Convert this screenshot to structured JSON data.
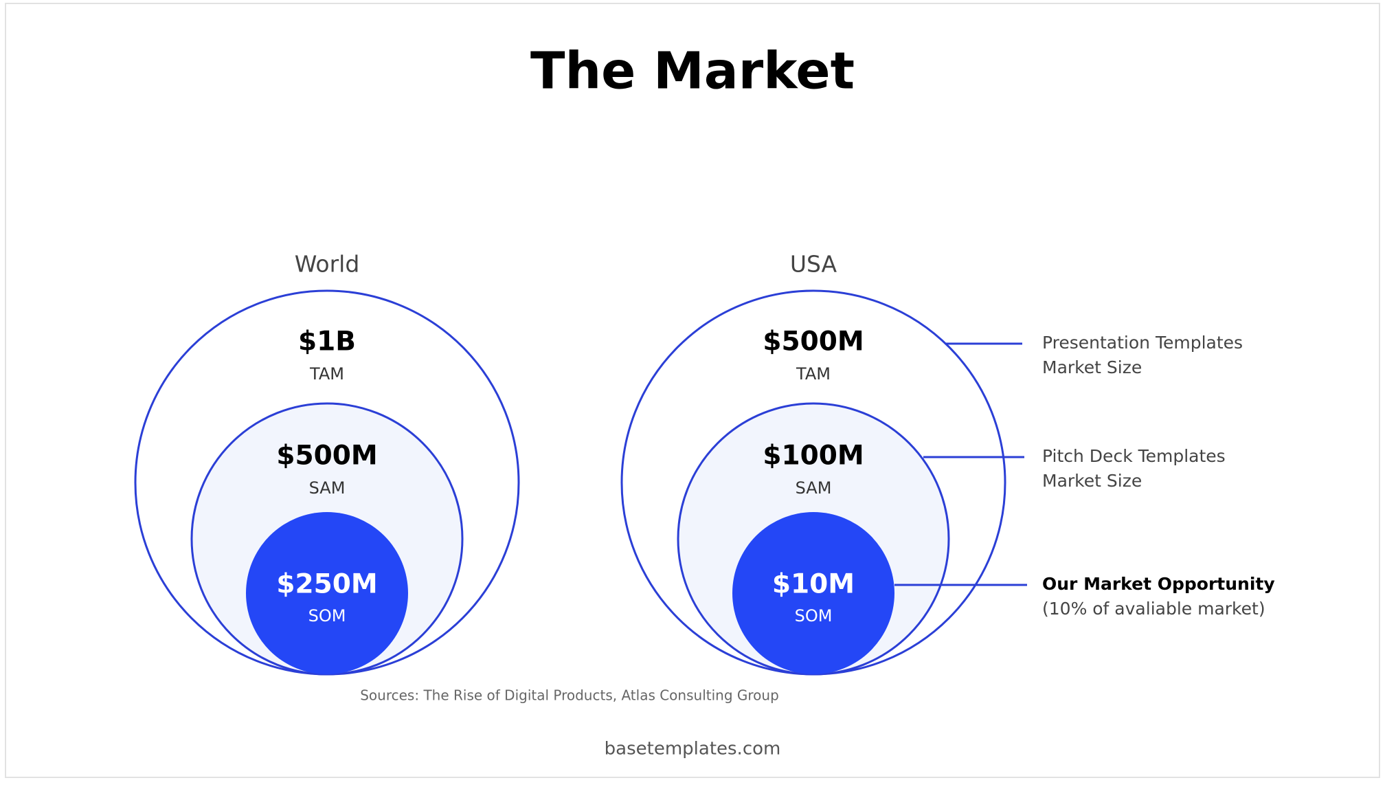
{
  "title": "The Market",
  "markets": [
    {
      "label": "World",
      "tam": {
        "value": "$1B",
        "label": "TAM"
      },
      "sam": {
        "value": "$500M",
        "label": "SAM"
      },
      "som": {
        "value": "$250M",
        "label": "SOM"
      }
    },
    {
      "label": "USA",
      "tam": {
        "value": "$500M",
        "label": "TAM"
      },
      "sam": {
        "value": "$100M",
        "label": "SAM"
      },
      "som": {
        "value": "$10M",
        "label": "SOM"
      }
    }
  ],
  "annotations": [
    {
      "lines": [
        "Presentation Templates",
        "Market Size"
      ]
    },
    {
      "lines": [
        "Pitch Deck Templates",
        "Market Size"
      ]
    },
    {
      "lines": [
        "Our Market Opportunity",
        "(10% of avaliable market)"
      ]
    }
  ],
  "source": "Sources: The Rise of Digital Products, Atlas Consulting Group",
  "footer": "basetemplates.com"
}
